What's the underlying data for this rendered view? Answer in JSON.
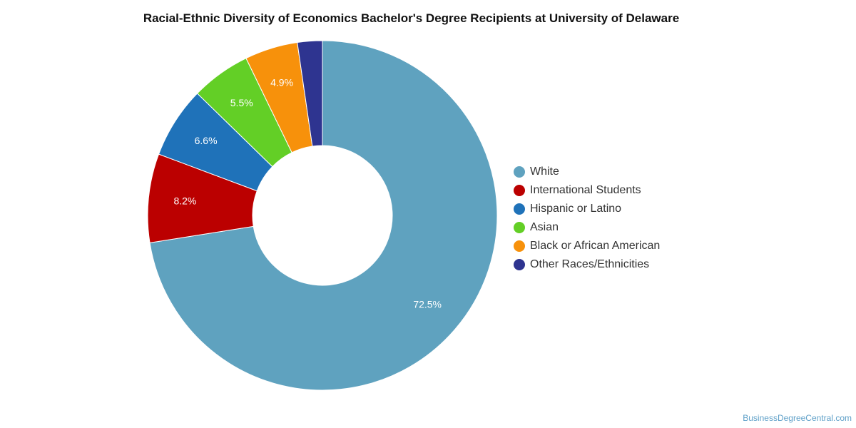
{
  "chart_data": {
    "type": "pie",
    "title": "Racial-Ethnic Diversity of Economics Bachelor's Degree Recipients at University of Delaware",
    "donut": true,
    "legend_position": "right",
    "slices": [
      {
        "label": "White",
        "value": 72.5,
        "display": "72.5%",
        "color": "#5fa2bf"
      },
      {
        "label": "International Students",
        "value": 8.2,
        "display": "8.2%",
        "color": "#bb0000"
      },
      {
        "label": "Hispanic or Latino",
        "value": 6.6,
        "display": "6.6%",
        "color": "#1f72b9"
      },
      {
        "label": "Asian",
        "value": 5.5,
        "display": "5.5%",
        "color": "#63cf26"
      },
      {
        "label": "Black or African American",
        "value": 4.9,
        "display": "4.9%",
        "color": "#f7910b"
      },
      {
        "label": "Other Races/Ethnicities",
        "value": 2.3,
        "display": "",
        "color": "#2e3490"
      }
    ]
  },
  "credit": "BusinessDegreeCentral.com"
}
